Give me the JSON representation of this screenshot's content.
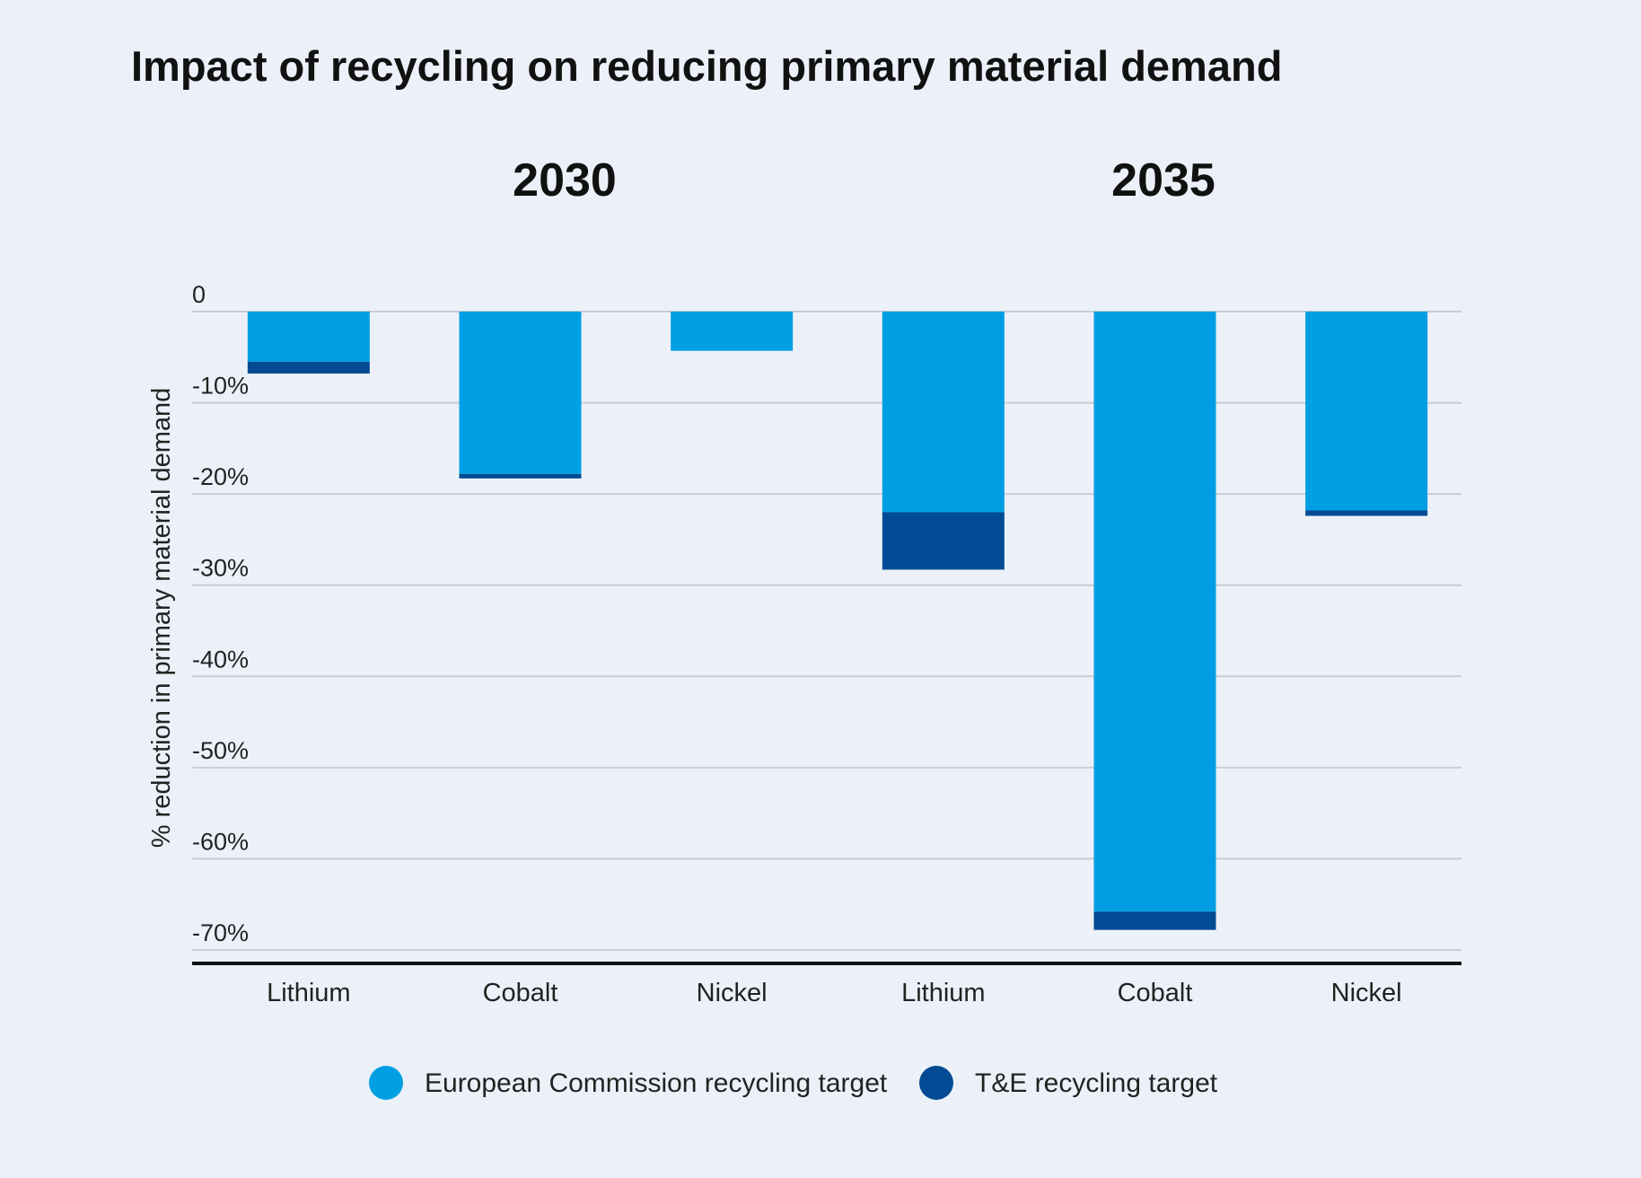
{
  "chart_data": {
    "type": "bar",
    "stacked": true,
    "title": "Impact of recycling on reducing primary material demand",
    "groups": [
      {
        "label": "2030",
        "categories": [
          "Lithium",
          "Cobalt",
          "Nickel"
        ]
      },
      {
        "label": "2035",
        "categories": [
          "Lithium",
          "Cobalt",
          "Nickel"
        ]
      }
    ],
    "categories": [
      "Lithium",
      "Cobalt",
      "Nickel",
      "Lithium",
      "Cobalt",
      "Nickel"
    ],
    "series": [
      {
        "name": "European Commission recycling target",
        "color": "#009fe3",
        "values": [
          -5.5,
          -17.8,
          -4.3,
          -22.0,
          -65.8,
          -21.8
        ]
      },
      {
        "name": "T&E recycling target",
        "color": "#004b93",
        "values": [
          -1.3,
          -0.5,
          0,
          -6.3,
          -2.0,
          -0.6
        ]
      }
    ],
    "ylabel": "% reduction in primary material demand",
    "xlabel": "",
    "ylim": [
      -70,
      0
    ],
    "yticks": [
      0,
      -10,
      -20,
      -30,
      -40,
      -50,
      -60,
      -70
    ],
    "ytick_labels": [
      "0",
      "-10%",
      "-20%",
      "-30%",
      "-40%",
      "-50%",
      "-60%",
      "-70%"
    ],
    "grid": true,
    "legend_position": "bottom-center"
  }
}
